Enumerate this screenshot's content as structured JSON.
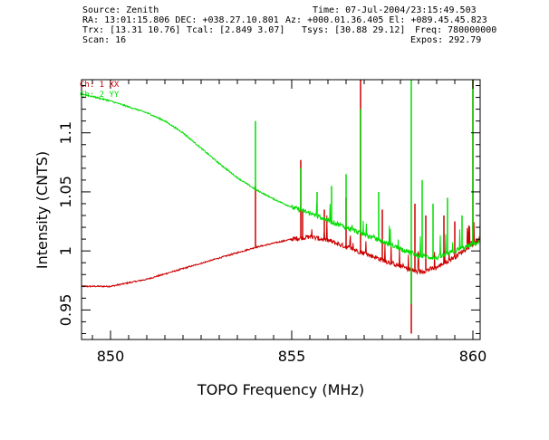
{
  "header": {
    "source": "Source: Zenith",
    "time": "Time: 07-Jul-2004/23:15:49.503",
    "ra_dec": "RA: 13:01:15.806 DEC: +038.27.10.801",
    "az_el": "Az: +000.01.36.405 El: +089.45.45.823",
    "trx": "Trx: [13.31 10.76]",
    "tcal": "Tcal: [2.849 3.07]",
    "tsys": "Tsys: [30.88 29.12]",
    "freq": "Freq: 780000000",
    "scan": "Scan: 16",
    "expos": "Expos: 292.79"
  },
  "chart_data": {
    "type": "line",
    "xlabel": "TOPO Frequency (MHz)",
    "ylabel": "Intensity (CNTS)",
    "xlim": [
      849.2,
      860.2
    ],
    "ylim": [
      0.925,
      1.145
    ],
    "x_ticks": [
      850,
      855,
      860
    ],
    "y_ticks": [
      0.95,
      1,
      1.05,
      1.1
    ],
    "y_tick_labels": [
      "0.95",
      "1",
      "1.05",
      "1.1"
    ],
    "series": [
      {
        "name": "Ch: 1 XX",
        "color": "#cc0000",
        "baseline": [
          [
            849.2,
            0.97
          ],
          [
            850.0,
            0.97
          ],
          [
            851.0,
            0.976
          ],
          [
            852.0,
            0.985
          ],
          [
            853.0,
            0.994
          ],
          [
            854.0,
            1.003
          ],
          [
            855.0,
            1.01
          ],
          [
            855.5,
            1.012
          ],
          [
            856.0,
            1.009
          ],
          [
            857.0,
            0.998
          ],
          [
            858.0,
            0.987
          ],
          [
            858.5,
            0.982
          ],
          [
            859.0,
            0.986
          ],
          [
            859.5,
            0.995
          ],
          [
            860.2,
            1.01
          ]
        ],
        "spikes": [
          [
            854.0,
            1.055
          ],
          [
            855.25,
            1.077
          ],
          [
            855.3,
            1.035
          ],
          [
            855.9,
            1.035
          ],
          [
            856.5,
            1.045
          ],
          [
            856.9,
            1.145
          ],
          [
            857.5,
            1.035
          ],
          [
            858.3,
            0.93
          ],
          [
            858.4,
            1.04
          ],
          [
            858.7,
            1.03
          ],
          [
            859.2,
            1.03
          ],
          [
            859.5,
            1.025
          ],
          [
            860.0,
            1.145
          ]
        ]
      },
      {
        "name": "Ch: 2 YY",
        "color": "#00dd00",
        "baseline": [
          [
            849.2,
            1.133
          ],
          [
            850.0,
            1.127
          ],
          [
            850.5,
            1.122
          ],
          [
            851.0,
            1.117
          ],
          [
            851.5,
            1.11
          ],
          [
            852.0,
            1.1
          ],
          [
            852.5,
            1.087
          ],
          [
            853.0,
            1.074
          ],
          [
            853.5,
            1.062
          ],
          [
            854.0,
            1.052
          ],
          [
            854.5,
            1.044
          ],
          [
            855.0,
            1.037
          ],
          [
            855.5,
            1.032
          ],
          [
            856.0,
            1.026
          ],
          [
            856.5,
            1.02
          ],
          [
            857.0,
            1.014
          ],
          [
            857.5,
            1.008
          ],
          [
            858.0,
            1.002
          ],
          [
            858.5,
            0.996
          ],
          [
            859.0,
            0.994
          ],
          [
            859.5,
            1.0
          ],
          [
            860.2,
            1.008
          ]
        ],
        "spikes": [
          [
            854.0,
            1.11
          ],
          [
            855.25,
            1.07
          ],
          [
            855.7,
            1.05
          ],
          [
            856.1,
            1.055
          ],
          [
            856.5,
            1.065
          ],
          [
            856.9,
            1.12
          ],
          [
            857.4,
            1.05
          ],
          [
            858.3,
            1.145
          ],
          [
            858.3,
            0.955
          ],
          [
            858.6,
            1.06
          ],
          [
            858.9,
            1.04
          ],
          [
            859.3,
            1.045
          ],
          [
            859.7,
            1.03
          ],
          [
            860.0,
            1.145
          ]
        ]
      }
    ]
  }
}
